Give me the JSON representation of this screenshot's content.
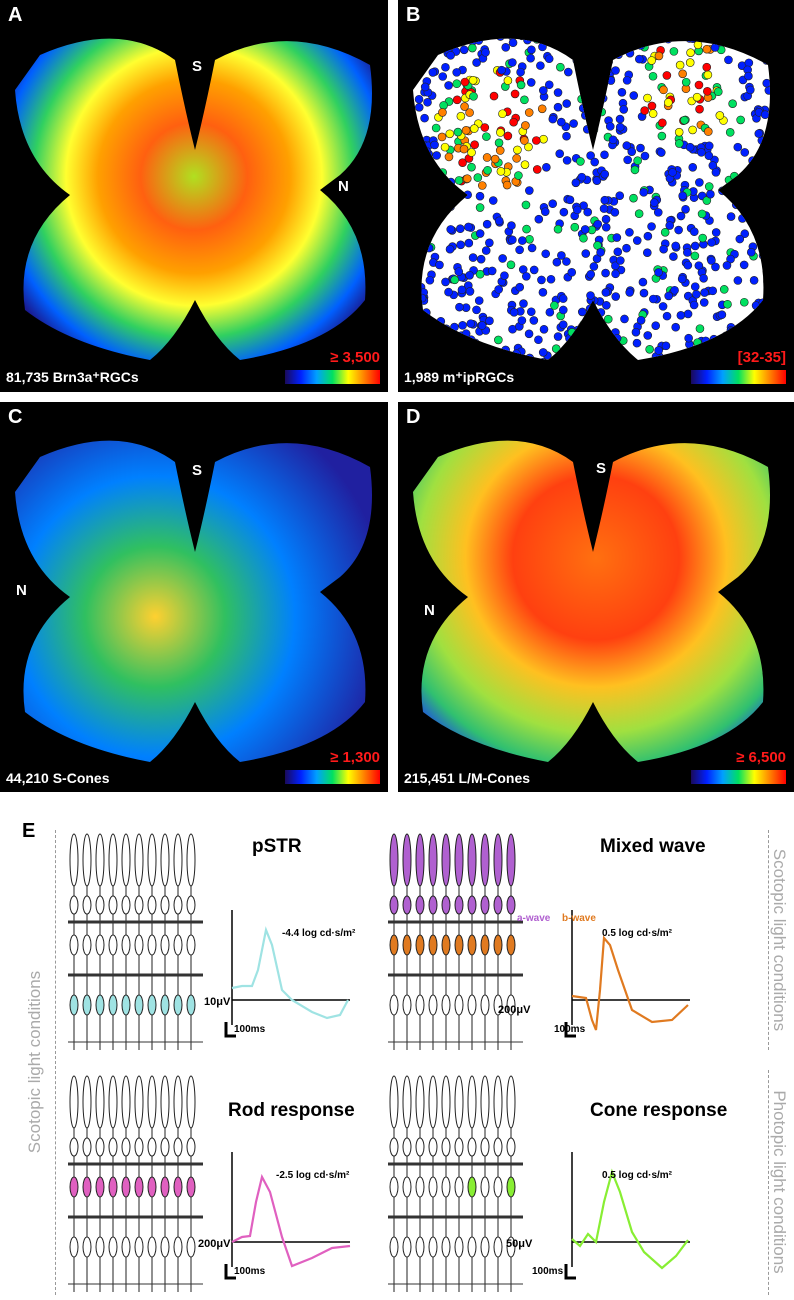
{
  "panels": [
    {
      "label": "A",
      "dir1": "S",
      "dir2": "N",
      "count": "81,735 Brn3a⁺RGCs",
      "scale": "≥ 3,500"
    },
    {
      "label": "B",
      "dir1": "S",
      "dir2": "N",
      "count": "1,989 m⁺ipRGCs",
      "scale": "[32-35]"
    },
    {
      "label": "C",
      "dir1": "S",
      "dir2": "N",
      "count": "44,210 S-Cones",
      "scale": "≥ 1,300"
    },
    {
      "label": "D",
      "dir1": "S",
      "dir2": "N",
      "count": "215,451 L/M-Cones",
      "scale": "≥ 6,500"
    }
  ],
  "colormap": [
    "#1a0a5a",
    "#0020ff",
    "#00a0ff",
    "#00e060",
    "#ffff00",
    "#ff8000",
    "#ff0000"
  ],
  "section_e": {
    "label": "E",
    "left_side": "Scotopic light conditions",
    "right_top": "Scotopic light conditions",
    "right_bottom": "Photopic light conditions",
    "responses": [
      {
        "title": "pSTR",
        "flash": "-4.4 log cd·s/m²",
        "amp": "10μV",
        "time": "100ms",
        "color": "#9fe3e3"
      },
      {
        "title": "Mixed wave",
        "flash": "0.5 log cd·s/m²",
        "amp": "200μV",
        "time": "100ms",
        "color": "#e07a20",
        "a_wave": "a-wave",
        "b_wave": "b-wave",
        "a_color": "#b060d0"
      },
      {
        "title": "Rod response",
        "flash": "-2.5 log cd·s/m²",
        "amp": "200μV",
        "time": "100ms",
        "color": "#e060c0"
      },
      {
        "title": "Cone response",
        "flash": "0.5 log cd·s/m²",
        "amp": "50μV",
        "time": "100ms",
        "color": "#88ee33"
      }
    ]
  }
}
